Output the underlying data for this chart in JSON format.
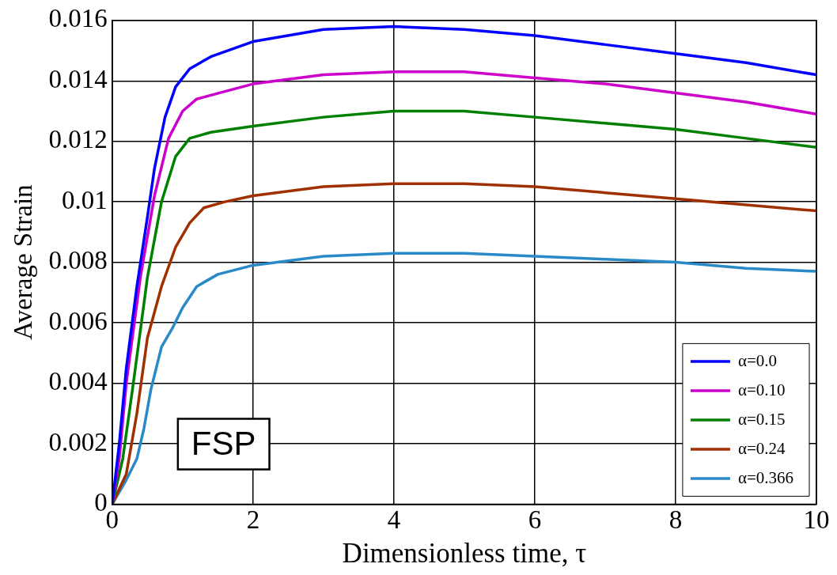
{
  "chart_data": {
    "type": "line",
    "xlabel": "Dimensionless time, τ",
    "ylabel": "Average Strain",
    "xlim": [
      0,
      10
    ],
    "xticks": [
      0,
      2,
      4,
      6,
      8,
      10
    ],
    "ylim": [
      0,
      0.016
    ],
    "yticks": [
      0,
      0.002,
      0.004,
      0.006,
      0.008,
      0.01,
      0.012,
      0.014,
      0.016
    ],
    "grid": true,
    "legend": "bottom right",
    "line_style": "solid",
    "marker": "none",
    "annotations": [
      "FSP"
    ],
    "series": [
      {
        "name": "α=0.0",
        "color": "#0000ff",
        "x": [
          0,
          0.1,
          0.2,
          0.35,
          0.5,
          0.6,
          0.75,
          0.9,
          1.1,
          1.4,
          2,
          3,
          4,
          5,
          6,
          7,
          8,
          9,
          10
        ],
        "values": [
          0,
          0.002,
          0.0045,
          0.0072,
          0.0095,
          0.0111,
          0.0128,
          0.0138,
          0.0144,
          0.0148,
          0.0153,
          0.0157,
          0.0158,
          0.0157,
          0.0155,
          0.0152,
          0.0149,
          0.0146,
          0.0142
        ]
      },
      {
        "name": "α=0.10",
        "color": "#cc00cc",
        "x": [
          0,
          0.1,
          0.2,
          0.4,
          0.6,
          0.8,
          1.0,
          1.2,
          2,
          3,
          4,
          5,
          6,
          7,
          8,
          9,
          10
        ],
        "values": [
          0,
          0.0015,
          0.004,
          0.0075,
          0.0102,
          0.0121,
          0.013,
          0.0134,
          0.0139,
          0.0142,
          0.0143,
          0.0143,
          0.0141,
          0.0139,
          0.0136,
          0.0133,
          0.0129
        ]
      },
      {
        "name": "α=0.15",
        "color": "#008000",
        "x": [
          0,
          0.15,
          0.3,
          0.5,
          0.7,
          0.9,
          1.1,
          1.4,
          2,
          3,
          4,
          5,
          6,
          7,
          8,
          9,
          10
        ],
        "values": [
          0,
          0.0015,
          0.004,
          0.0075,
          0.01,
          0.0115,
          0.0121,
          0.0123,
          0.0125,
          0.0128,
          0.013,
          0.013,
          0.0128,
          0.0126,
          0.0124,
          0.0121,
          0.0118
        ]
      },
      {
        "name": "α=0.24",
        "color": "#a03000",
        "x": [
          0,
          0.2,
          0.35,
          0.5,
          0.7,
          0.9,
          1.1,
          1.3,
          1.6,
          2,
          3,
          4,
          5,
          6,
          7,
          8,
          9,
          10
        ],
        "values": [
          0,
          0.001,
          0.003,
          0.0055,
          0.0072,
          0.0085,
          0.0093,
          0.0098,
          0.01,
          0.0102,
          0.0105,
          0.0106,
          0.0106,
          0.0105,
          0.0103,
          0.0101,
          0.0099,
          0.0097
        ]
      },
      {
        "name": "α=0.366",
        "color": "#2a8ac8",
        "x": [
          0,
          0.2,
          0.35,
          0.45,
          0.55,
          0.7,
          0.85,
          1.0,
          1.2,
          1.5,
          2,
          3,
          4,
          5,
          6,
          7,
          8,
          9,
          10
        ],
        "values": [
          0,
          0.0008,
          0.0015,
          0.0025,
          0.0038,
          0.0052,
          0.0058,
          0.0065,
          0.0072,
          0.0076,
          0.0079,
          0.0082,
          0.0083,
          0.0083,
          0.0082,
          0.0081,
          0.008,
          0.0078,
          0.0077
        ]
      }
    ]
  }
}
